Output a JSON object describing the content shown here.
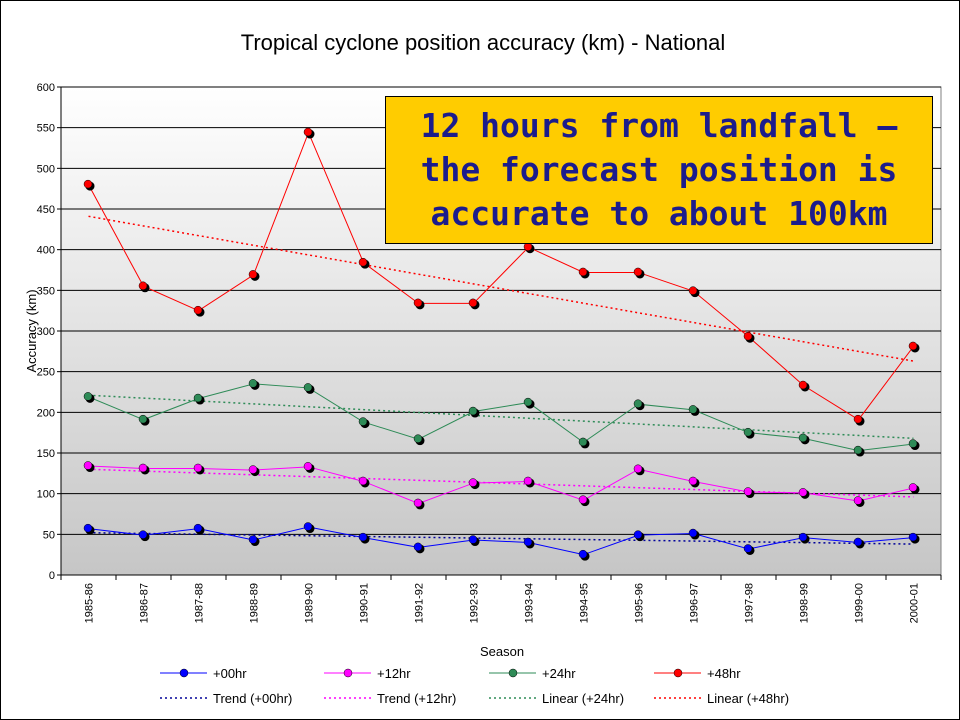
{
  "chart_data": {
    "type": "line",
    "title": "Tropical cyclone position accuracy (km) - National",
    "xlabel": "Season",
    "ylabel": "Accuracy (km)",
    "ylim": [
      0,
      600
    ],
    "ytick_step": 50,
    "grid": true,
    "legend_position": "bottom",
    "categories": [
      "1985-86",
      "1986-87",
      "1987-88",
      "1988-89",
      "1989-90",
      "1990-91",
      "1991-92",
      "1992-93",
      "1993-94",
      "1994-95",
      "1995-96",
      "1996-97",
      "1997-98",
      "1998-99",
      "1999-00",
      "2000-01"
    ],
    "series": [
      {
        "name": "+00hr",
        "color": "#0000ff",
        "values": [
          57,
          49,
          57,
          43,
          59,
          46,
          34,
          43,
          40,
          25,
          49,
          51,
          32,
          46,
          40,
          46
        ]
      },
      {
        "name": "+12hr",
        "color": "#ff00ff",
        "values": [
          134,
          131,
          131,
          129,
          133,
          115,
          88,
          113,
          115,
          92,
          130,
          115,
          102,
          101,
          91,
          107
        ]
      },
      {
        "name": "+24hr",
        "color": "#2e8b57",
        "values": [
          219,
          191,
          217,
          235,
          230,
          188,
          167,
          201,
          212,
          163,
          210,
          203,
          175,
          168,
          153,
          161
        ]
      },
      {
        "name": "+48hr",
        "color": "#ff0000",
        "values": [
          480,
          355,
          325,
          369,
          544,
          384,
          334,
          334,
          403,
          372,
          372,
          349,
          293,
          233,
          191,
          281
        ]
      }
    ],
    "trendlines": [
      {
        "name": "Trend (+00hr)",
        "color": "#000099",
        "start": 52,
        "end": 38
      },
      {
        "name": "Trend (+12hr)",
        "color": "#ff00ff",
        "start": 130,
        "end": 96
      },
      {
        "name": "Linear (+24hr)",
        "color": "#2e8b57",
        "start": 221,
        "end": 168
      },
      {
        "name": "Linear (+48hr)",
        "color": "#ff0000",
        "start": 441,
        "end": 263
      }
    ],
    "annotation": "12 hours from landfall – the forecast position is accurate to about 100km"
  }
}
